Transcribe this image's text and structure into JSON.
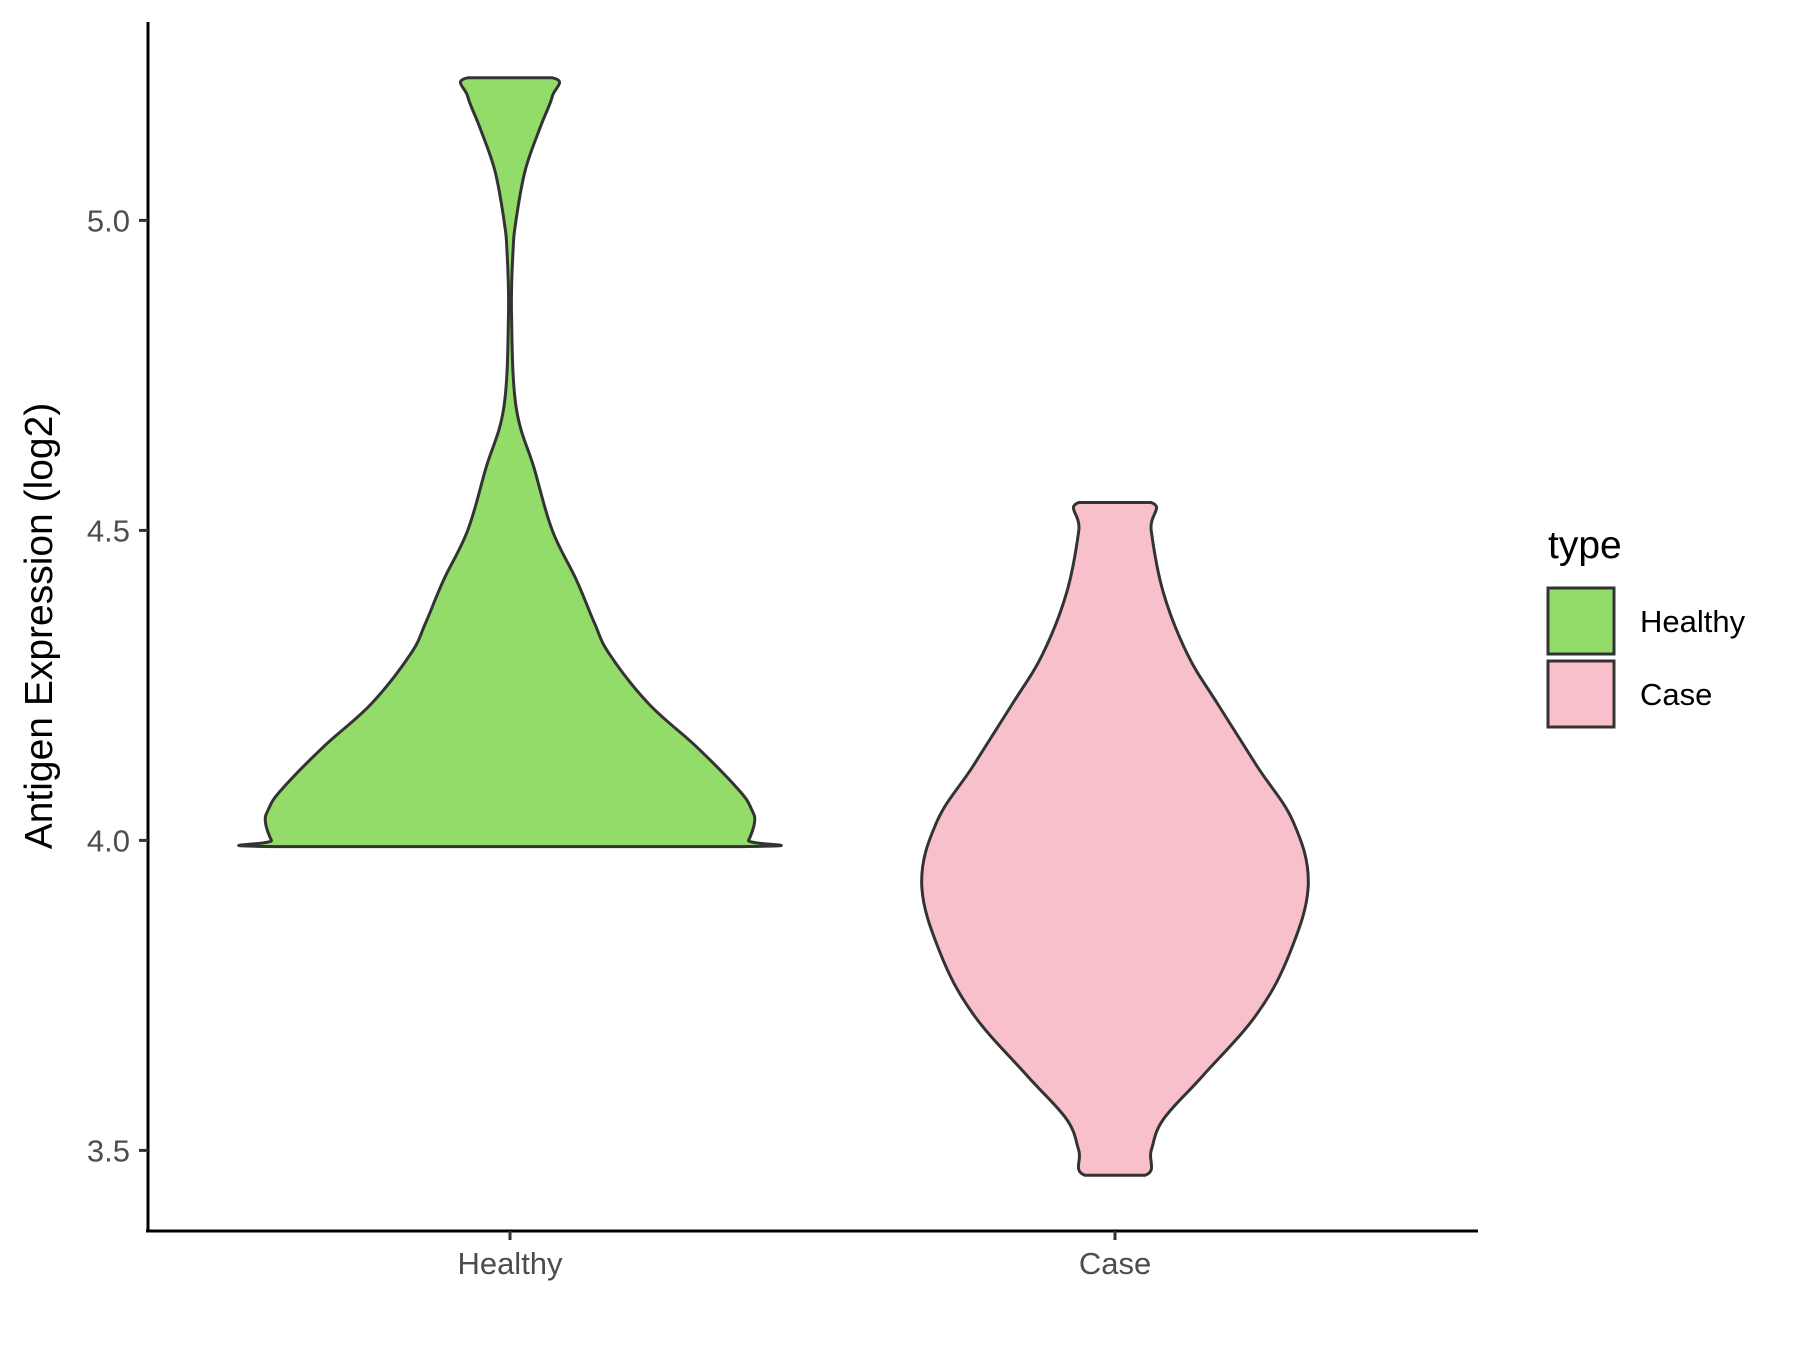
{
  "chart_data": {
    "type": "violin",
    "title": "",
    "xlabel": "",
    "ylabel": "Antigen Expression (log2)",
    "categories": [
      "Healthy",
      "Case"
    ],
    "ylim": [
      3.37,
      5.32
    ],
    "yticks": [
      {
        "value": 3.5,
        "label": "3.5"
      },
      {
        "value": 4.0,
        "label": "4.0"
      },
      {
        "value": 4.5,
        "label": "4.5"
      },
      {
        "value": 5.0,
        "label": "5.0"
      }
    ],
    "grid": false,
    "legend": {
      "title": "type",
      "placement": "right",
      "entries": [
        {
          "label": "Healthy",
          "color": "#93DC6A"
        },
        {
          "label": "Case",
          "color": "#F8C0CB"
        }
      ]
    },
    "violins": [
      {
        "category": "Healthy",
        "color": "#93DC6A",
        "min": 3.99,
        "max": 5.23,
        "width_profile": [
          [
            3.99,
            0.77
          ],
          [
            4.0,
            0.79
          ],
          [
            4.03,
            0.81
          ],
          [
            4.05,
            0.8
          ],
          [
            4.08,
            0.76
          ],
          [
            4.15,
            0.62
          ],
          [
            4.22,
            0.46
          ],
          [
            4.3,
            0.33
          ],
          [
            4.35,
            0.28
          ],
          [
            4.42,
            0.22
          ],
          [
            4.5,
            0.14
          ],
          [
            4.6,
            0.08
          ],
          [
            4.7,
            0.02
          ],
          [
            4.85,
            0.005
          ],
          [
            4.95,
            0.01
          ],
          [
            5.0,
            0.02
          ],
          [
            5.08,
            0.05
          ],
          [
            5.15,
            0.1
          ],
          [
            5.2,
            0.14
          ],
          [
            5.23,
            0.14
          ]
        ]
      },
      {
        "category": "Case",
        "color": "#F8C0CB",
        "min": 3.46,
        "max": 4.545,
        "width_profile": [
          [
            3.46,
            0.1
          ],
          [
            3.5,
            0.12
          ],
          [
            3.55,
            0.16
          ],
          [
            3.62,
            0.29
          ],
          [
            3.72,
            0.47
          ],
          [
            3.82,
            0.58
          ],
          [
            3.93,
            0.64
          ],
          [
            4.03,
            0.59
          ],
          [
            4.12,
            0.47
          ],
          [
            4.22,
            0.34
          ],
          [
            4.3,
            0.24
          ],
          [
            4.4,
            0.16
          ],
          [
            4.5,
            0.12
          ],
          [
            4.545,
            0.12
          ]
        ]
      }
    ]
  }
}
